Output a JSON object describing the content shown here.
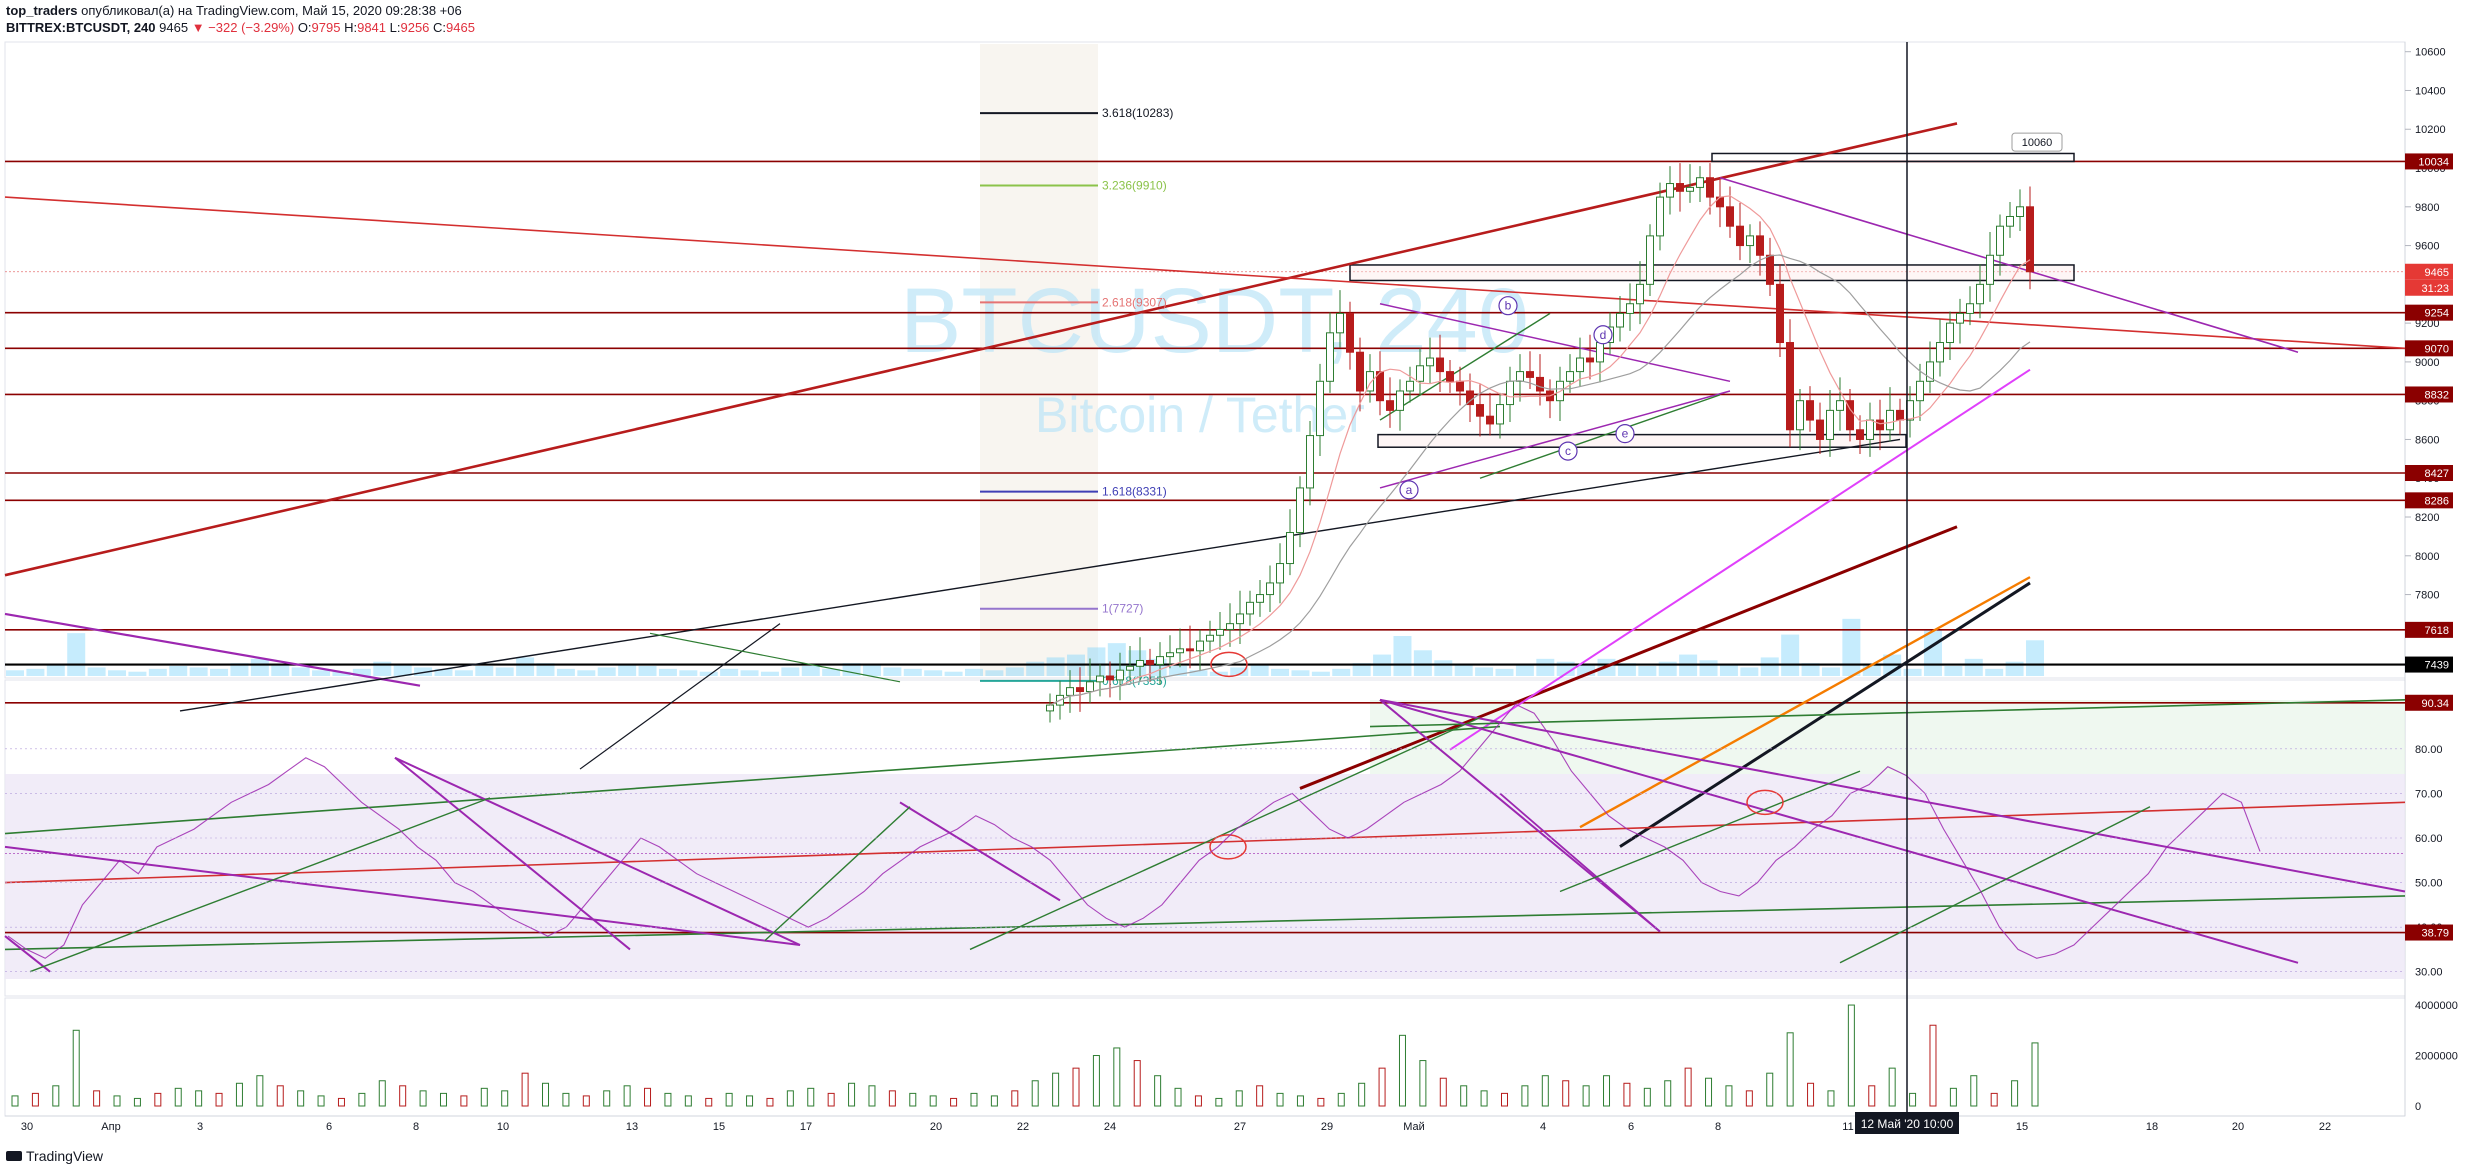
{
  "header": {
    "author": "top_traders",
    "published": "опубликовал(а) на TradingView.com, Май 15, 2020 09:28:38 +06",
    "symbol": "BITTREX:BTCUSDT, 240",
    "last": "9465",
    "change": "▼ −322 (−3.29%)",
    "o_label": "O:",
    "o": "9795",
    "h_label": "H:",
    "h": "9841",
    "l_label": "L:",
    "l": "9256",
    "c_label": "C:",
    "c": "9465"
  },
  "watermark": {
    "symbol": "BTCUSDT, 240",
    "name": "Bitcoin / Tether"
  },
  "footer": {
    "brand": "TradingView"
  },
  "colors": {
    "up": "#2e7d32",
    "down": "#b71c1c",
    "level": "#8b0000",
    "rsi": "#9c27b0",
    "fib_bg": "#f3ece4"
  },
  "chart_data": [
    {
      "type": "candlestick",
      "pane": "price",
      "ylim": [
        7380,
        10650
      ],
      "y_ticks": [
        "10600",
        "10400",
        "10200",
        "10000",
        "9800",
        "9600",
        "9400",
        "9200",
        "9000",
        "8800",
        "8600",
        "8400",
        "8200",
        "8000",
        "7800",
        "7600"
      ],
      "level_labels": [
        "10034",
        "9465",
        "31:23",
        "9254",
        "9070",
        "8832",
        "8427",
        "8286",
        "7618",
        "7439"
      ],
      "fib_levels": [
        {
          "label": "3.618(10283)",
          "value": 10283,
          "color": "#131722"
        },
        {
          "label": "3.236(9910)",
          "value": 9910,
          "color": "#8bc34a"
        },
        {
          "label": "2.618(9307)",
          "value": 9307,
          "color": "#e57373"
        },
        {
          "label": "1.618(8331)",
          "value": 8331,
          "color": "#3f3fb5"
        },
        {
          "label": "1(7727)",
          "value": 7727,
          "color": "#9575cd"
        },
        {
          "label": "0.618(7355)",
          "value": 7355,
          "color": "#26a69a"
        }
      ],
      "annotations": [
        "10060",
        "a",
        "b",
        "c",
        "d",
        "e"
      ],
      "close": [
        7230,
        7280,
        7320,
        7300,
        7350,
        7380,
        7360,
        7410,
        7430,
        7460,
        7440,
        7480,
        7500,
        7520,
        7510,
        7560,
        7590,
        7620,
        7650,
        7700,
        7760,
        7800,
        7860,
        7960,
        8120,
        8350,
        8620,
        8900,
        9150,
        9250,
        9050,
        8850,
        8950,
        8800,
        8750,
        8850,
        8900,
        8980,
        9020,
        8950,
        8900,
        8850,
        8780,
        8720,
        8680,
        8780,
        8900,
        8950,
        8920,
        8850,
        8800,
        8900,
        8950,
        9020,
        9000,
        9100,
        9180,
        9250,
        9300,
        9400,
        9650,
        9850,
        9920,
        9880,
        9900,
        9950,
        9850,
        9800,
        9700,
        9600,
        9650,
        9550,
        9400,
        9100,
        8650,
        8800,
        8700,
        8600,
        8750,
        8800,
        8650,
        8600,
        8700,
        8650,
        8750,
        8700,
        8800,
        8900,
        9000,
        9100,
        9200,
        9250,
        9300,
        9400,
        9550,
        9700,
        9750,
        9800,
        9465
      ],
      "x_ticks": [
        "30",
        "Апр",
        "3",
        "6",
        "8",
        "10",
        "13",
        "15",
        "17",
        "20",
        "22",
        "24",
        "27",
        "29",
        "Май",
        "4",
        "6",
        "8",
        "11",
        "13",
        "15",
        "18",
        "20",
        "22"
      ],
      "crosshair_label": "12 Май '20  10:00"
    },
    {
      "type": "line",
      "pane": "rsi",
      "ylim": [
        25,
        95
      ],
      "y_ticks": [
        "80.00",
        "70.00",
        "60.00",
        "50.00",
        "40.00",
        "30.00"
      ],
      "level_labels": [
        "90.34",
        "38.79"
      ],
      "values": [
        38,
        35,
        33,
        36,
        45,
        50,
        55,
        52,
        58,
        60,
        62,
        65,
        68,
        70,
        72,
        75,
        78,
        76,
        72,
        68,
        65,
        62,
        58,
        55,
        50,
        48,
        45,
        42,
        40,
        38,
        40,
        45,
        50,
        55,
        60,
        58,
        55,
        52,
        50,
        48,
        46,
        44,
        42,
        40,
        42,
        45,
        48,
        52,
        55,
        58,
        60,
        62,
        65,
        63,
        60,
        58,
        55,
        50,
        45,
        42,
        40,
        42,
        45,
        50,
        55,
        58,
        62,
        65,
        68,
        70,
        66,
        62,
        60,
        62,
        65,
        68,
        70,
        72,
        75,
        80,
        85,
        90,
        88,
        82,
        75,
        70,
        65,
        62,
        60,
        58,
        55,
        50,
        48,
        47,
        50,
        55,
        58,
        62,
        65,
        70,
        72,
        76,
        74,
        70,
        62,
        55,
        48,
        40,
        35,
        33,
        34,
        36,
        40,
        44,
        48,
        52,
        58,
        62,
        66,
        70,
        68,
        57
      ]
    },
    {
      "type": "bar",
      "pane": "volume",
      "ylim": [
        0,
        4200000
      ],
      "y_ticks": [
        "4000000",
        "2000000",
        "0"
      ],
      "values": [
        400000,
        500000,
        800000,
        3000000,
        600000,
        400000,
        300000,
        500000,
        700000,
        600000,
        500000,
        900000,
        1200000,
        800000,
        600000,
        400000,
        300000,
        500000,
        1000000,
        800000,
        600000,
        500000,
        400000,
        700000,
        600000,
        1300000,
        900000,
        500000,
        400000,
        600000,
        800000,
        700000,
        500000,
        400000,
        300000,
        500000,
        400000,
        300000,
        600000,
        700000,
        500000,
        900000,
        800000,
        600000,
        500000,
        400000,
        300000,
        500000,
        400000,
        600000,
        1000000,
        1300000,
        1500000,
        2000000,
        2300000,
        1800000,
        1200000,
        700000,
        400000,
        300000,
        600000,
        800000,
        500000,
        400000,
        300000,
        500000,
        900000,
        1500000,
        2800000,
        1800000,
        1100000,
        800000,
        600000,
        500000,
        800000,
        1200000,
        1000000,
        800000,
        1200000,
        900000,
        700000,
        1000000,
        1500000,
        1100000,
        800000,
        600000,
        1300000,
        2900000,
        900000,
        600000,
        4000000,
        800000,
        1500000,
        500000,
        3200000,
        700000,
        1200000,
        500000,
        1000000,
        2500000
      ]
    }
  ]
}
